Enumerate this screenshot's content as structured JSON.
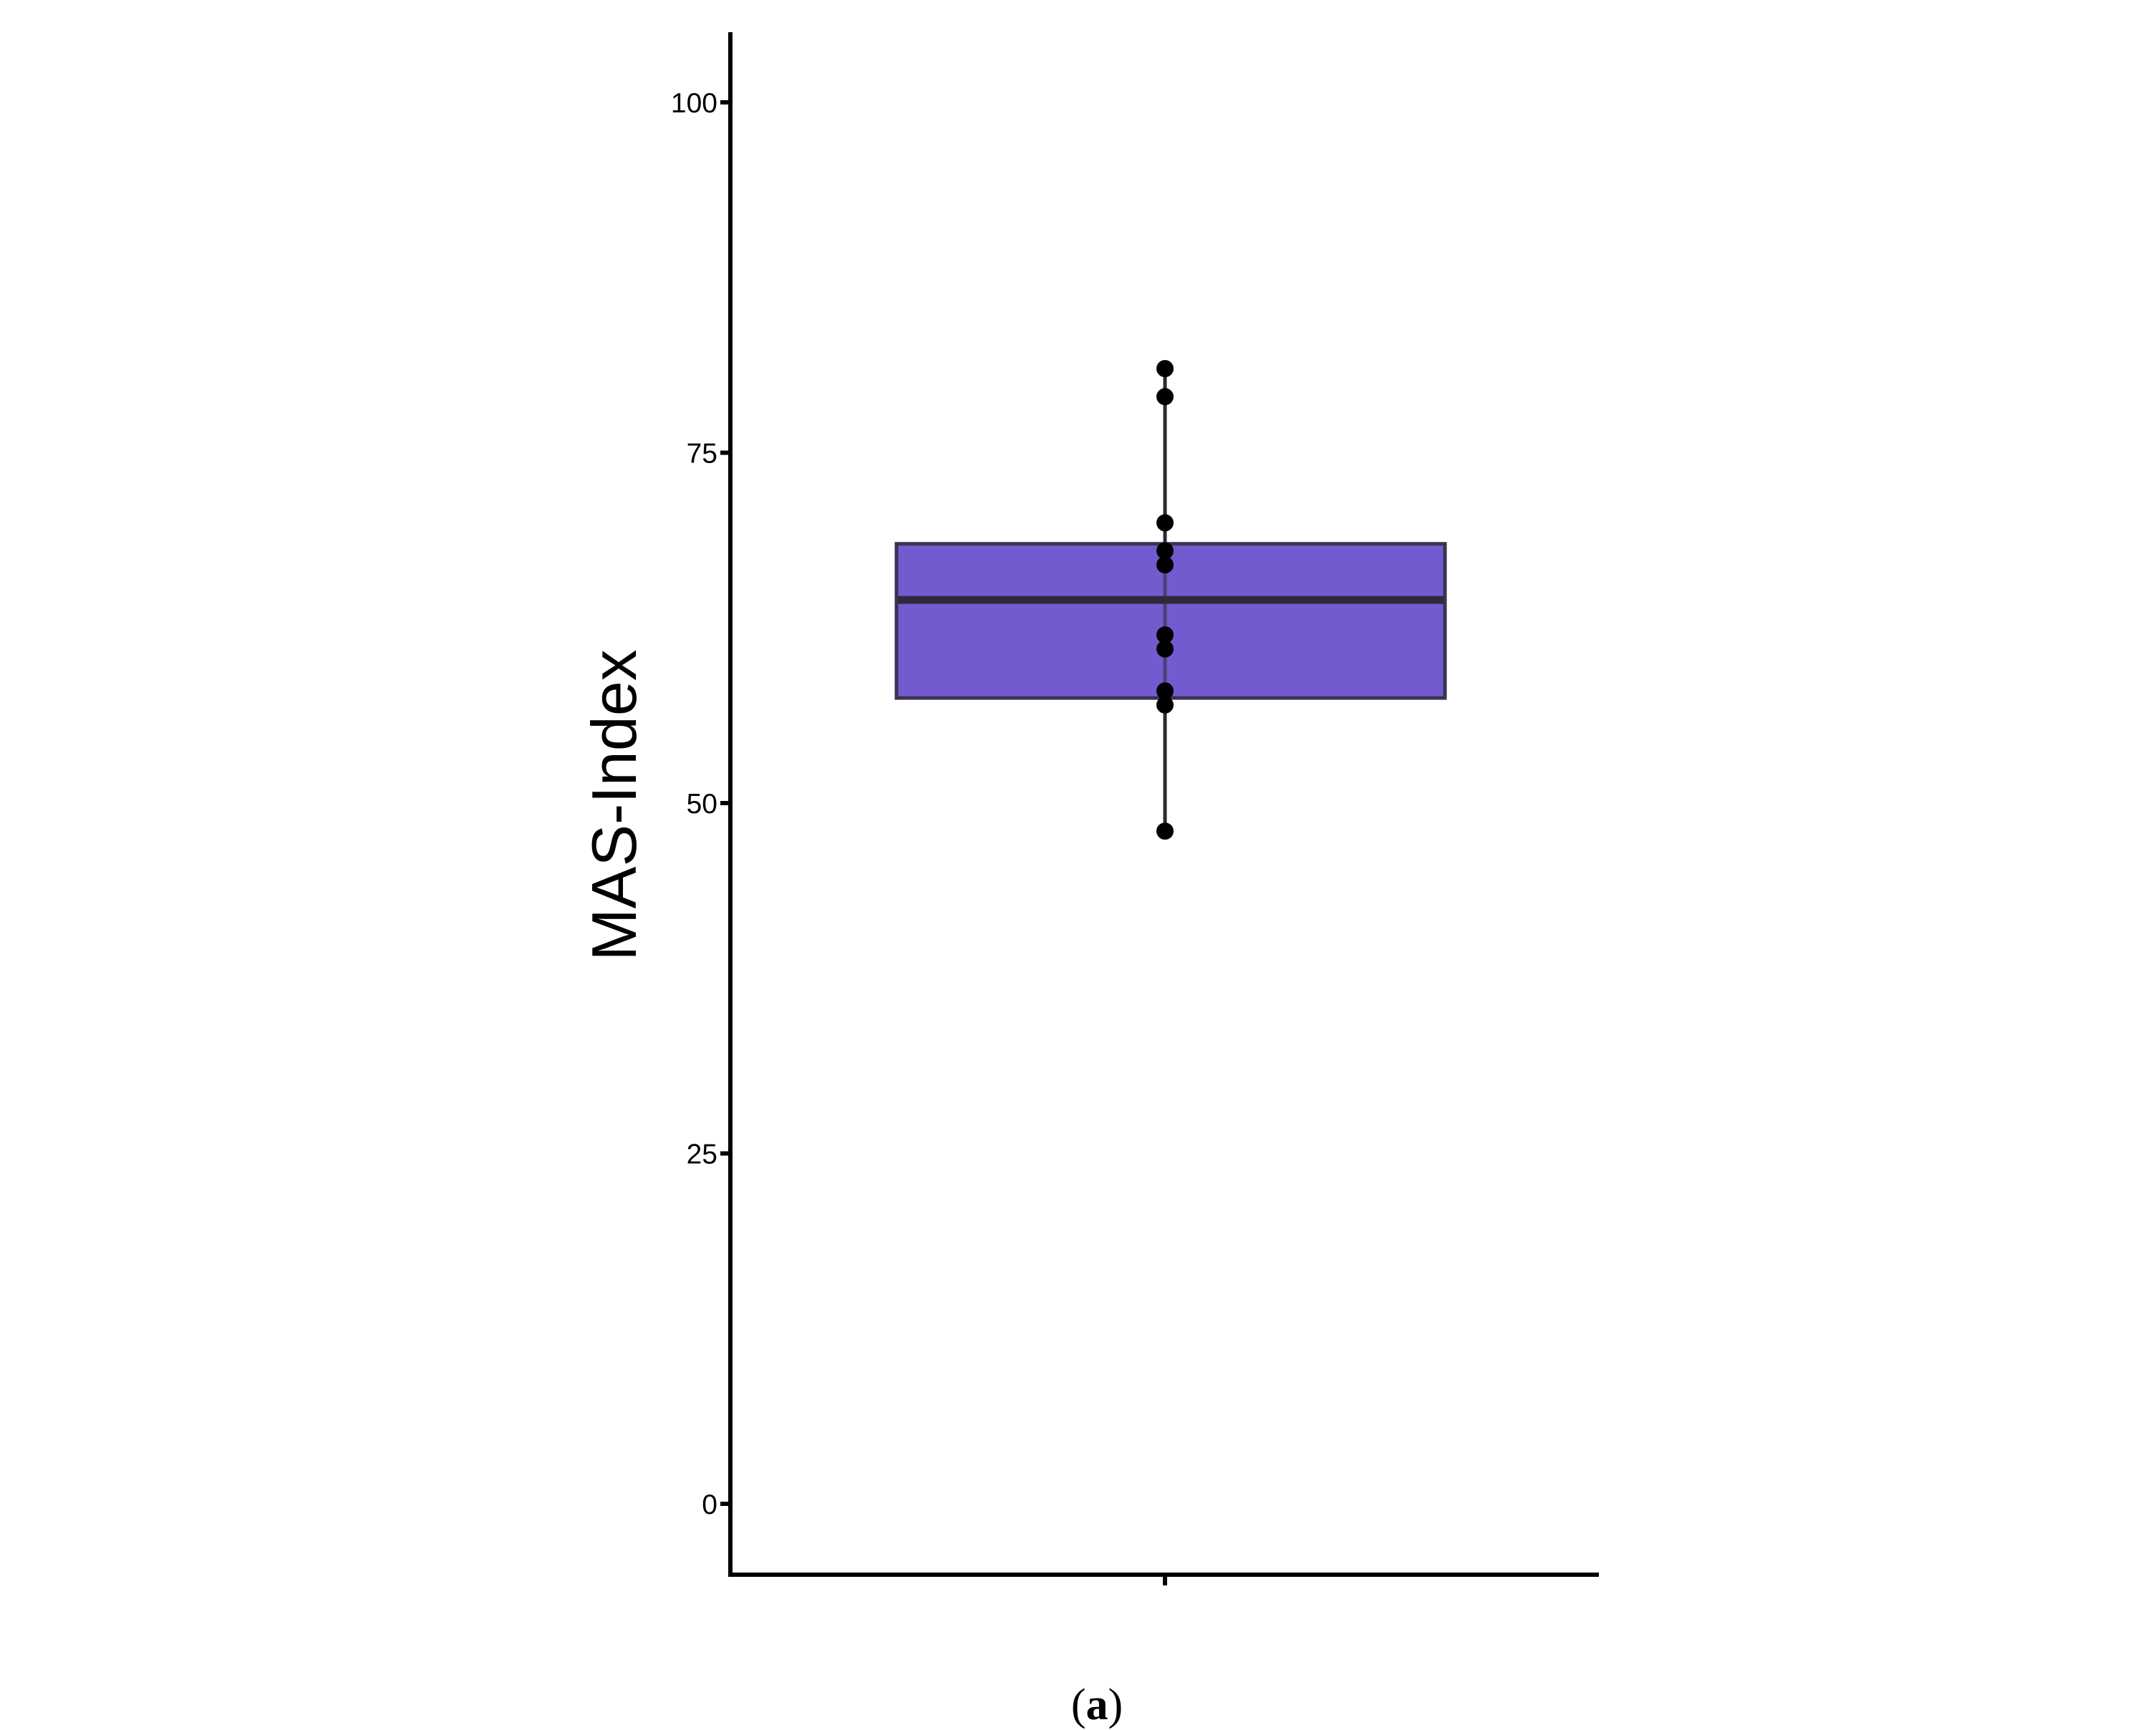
{
  "chart_data": {
    "type": "box",
    "ylabel": "MAS-Index",
    "xlabel": "",
    "ylim": [
      -5,
      105
    ],
    "yticks": [
      0,
      25,
      50,
      75,
      100
    ],
    "ytick_labels": [
      "0",
      "25",
      "50",
      "75",
      "100"
    ],
    "grid": false,
    "legend": "none",
    "box": {
      "min": 48,
      "q1": 57.5,
      "median": 64.5,
      "q3": 68.5,
      "max": 81,
      "fill_color": "#735bcf",
      "edge_color": "#3a3352",
      "median_color": "#2e2a3e"
    },
    "points": [
      81,
      79,
      70,
      68,
      67,
      62,
      61,
      58,
      57,
      48
    ],
    "point_color": "#000000"
  },
  "caption": {
    "open": "(",
    "letter": "a",
    "close": ")"
  }
}
